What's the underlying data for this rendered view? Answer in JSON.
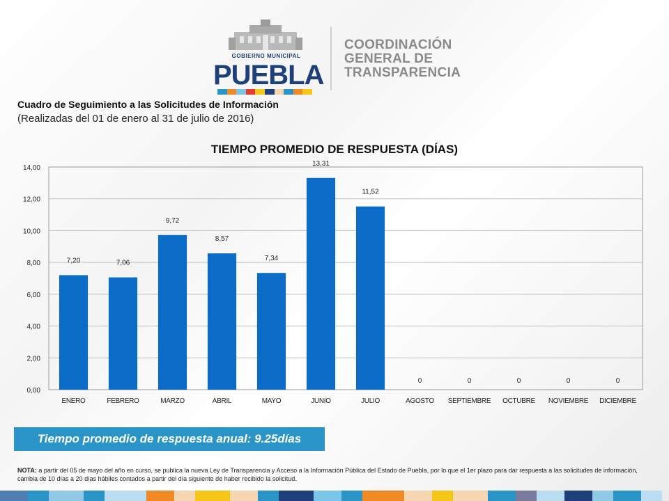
{
  "header": {
    "logo_small": "GOBIERNO MUNICIPAL",
    "logo_word": "PUEBLA",
    "coordination_lines": [
      "COORDINACIÓN",
      "GENERAL DE",
      "TRANSPARENCIA"
    ]
  },
  "document": {
    "title": "Cuadro de Seguimiento a las Solicitudes de Información",
    "subtitle": "(Realizadas del 01 de enero al 31 de julio de 2016)"
  },
  "annual_summary": "Tiempo promedio de respuesta anual: 9.25días",
  "note": {
    "label": "NOTA:",
    "text": "a partir del  05 de mayo del año en curso, se publica la nueva Ley de Transparencia y Acceso a la Información  Pública del Estado de Puebla, por lo que el 1er plazo para dar respuesta a las solicitudes de información, cambia de 10 días a 20 días hábiles contados a partir del día siguiente  de  haber recibido la solicitud."
  },
  "colors": {
    "bar": "#0b6cc8",
    "summary_box": "#2a93c7",
    "logo_blue": "#1d3f7a"
  },
  "chart_data": {
    "type": "bar",
    "title": "TIEMPO PROMEDIO DE RESPUESTA (DÍAS)",
    "categories": [
      "ENERO",
      "FEBRERO",
      "MARZO",
      "ABRIL",
      "MAYO",
      "JUNIO",
      "JULIO",
      "AGOSTO",
      "SEPTIEMBRE",
      "OCTUBRE",
      "NOVIEMBRE",
      "DICIEMBRE"
    ],
    "values": [
      7.2,
      7.06,
      9.72,
      8.57,
      7.34,
      13.31,
      11.52,
      0,
      0,
      0,
      0,
      0
    ],
    "data_labels": [
      "7,20",
      "7,06",
      "9,72",
      "8,57",
      "7,34",
      "13,31",
      "11,52",
      "0",
      "0",
      "0",
      "0",
      "0"
    ],
    "yticks": [
      "0,00",
      "2,00",
      "4,00",
      "6,00",
      "8,00",
      "10,00",
      "12,00",
      "14,00"
    ],
    "ylim": [
      0,
      14
    ],
    "xlabel": "",
    "ylabel": "",
    "grid": true,
    "legend": "none"
  }
}
